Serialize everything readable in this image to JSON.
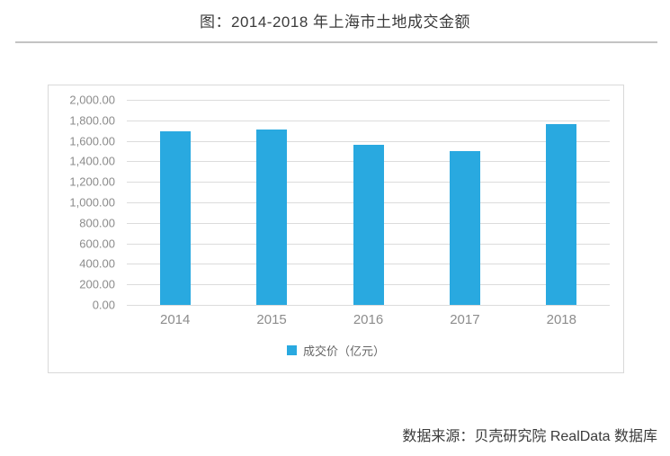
{
  "page": {
    "title": "图：2014-2018 年上海市土地成交金额",
    "source": "数据来源：贝壳研究院 RealData 数据库"
  },
  "chart_data": {
    "type": "bar",
    "title": "图：2014-2018 年上海市土地成交金额",
    "categories": [
      "2014",
      "2015",
      "2016",
      "2017",
      "2018"
    ],
    "series": [
      {
        "name": "成交价（亿元）",
        "values": [
          1690,
          1710,
          1560,
          1500,
          1760
        ]
      }
    ],
    "xlabel": "",
    "ylabel": "",
    "ylim": [
      0,
      2000
    ],
    "ytick_step": 200,
    "ytick_labels_bottom_to_top": [
      "0.00",
      "200.00",
      "400.00",
      "600.00",
      "800.00",
      "1,000.00",
      "1,200.00",
      "1,400.00",
      "1,600.00",
      "1,800.00",
      "2,000.00"
    ],
    "grid": true,
    "legend_position": "bottom"
  },
  "colors": {
    "bar": "#29a9e0",
    "grid": "#dcdcdc",
    "axis_text": "#8c8c8c",
    "title_text": "#3b3b3b",
    "panel_border": "#d9d9d9",
    "divider": "#c3c3c3"
  }
}
